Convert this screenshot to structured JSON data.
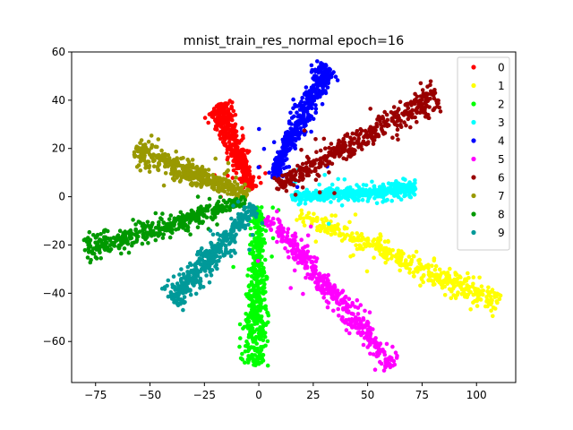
{
  "chart_data": {
    "type": "scatter",
    "title": "mnist_train_res_normal epoch=16",
    "xlabel": "",
    "ylabel": "",
    "xlim": [
      -86,
      118
    ],
    "ylim": [
      -77,
      60
    ],
    "xticks": [
      -75,
      -50,
      -25,
      0,
      25,
      50,
      75,
      100
    ],
    "xtick_labels": [
      "−75",
      "−50",
      "−25",
      "0",
      "25",
      "50",
      "75",
      "100"
    ],
    "yticks": [
      -60,
      -40,
      -20,
      0,
      20,
      40,
      60
    ],
    "ytick_labels": [
      "−60",
      "−40",
      "−20",
      "0",
      "20",
      "40",
      "60"
    ],
    "grid": false,
    "legend_position": "upper right",
    "series": [
      {
        "name": "0",
        "color": "#ff0000",
        "start": [
          -3,
          3
        ],
        "end": [
          -19,
          38
        ],
        "width": 2.2
      },
      {
        "name": "1",
        "color": "#ffff00",
        "start": [
          18,
          -7
        ],
        "end": [
          110,
          -44
        ],
        "width": 2.4
      },
      {
        "name": "2",
        "color": "#00ff00",
        "start": [
          0,
          -4
        ],
        "end": [
          -2,
          -70
        ],
        "width": 2.4
      },
      {
        "name": "3",
        "color": "#00ffff",
        "start": [
          15,
          0
        ],
        "end": [
          72,
          3
        ],
        "width": 1.6
      },
      {
        "name": "4",
        "color": "#0000ff",
        "start": [
          6,
          8
        ],
        "end": [
          32,
          54
        ],
        "width": 2.4
      },
      {
        "name": "5",
        "color": "#ff00ff",
        "start": [
          4,
          -8
        ],
        "end": [
          62,
          -70
        ],
        "width": 2.4
      },
      {
        "name": "6",
        "color": "#990000",
        "start": [
          8,
          4
        ],
        "end": [
          82,
          42
        ],
        "width": 2.6
      },
      {
        "name": "7",
        "color": "#999900",
        "start": [
          -5,
          1
        ],
        "end": [
          -57,
          19
        ],
        "width": 2.4
      },
      {
        "name": "8",
        "color": "#009900",
        "start": [
          -6,
          -2
        ],
        "end": [
          -80,
          -22
        ],
        "width": 2.4
      },
      {
        "name": "9",
        "color": "#009999",
        "start": [
          -2,
          -4
        ],
        "end": [
          -40,
          -43
        ],
        "width": 2.4
      }
    ]
  }
}
